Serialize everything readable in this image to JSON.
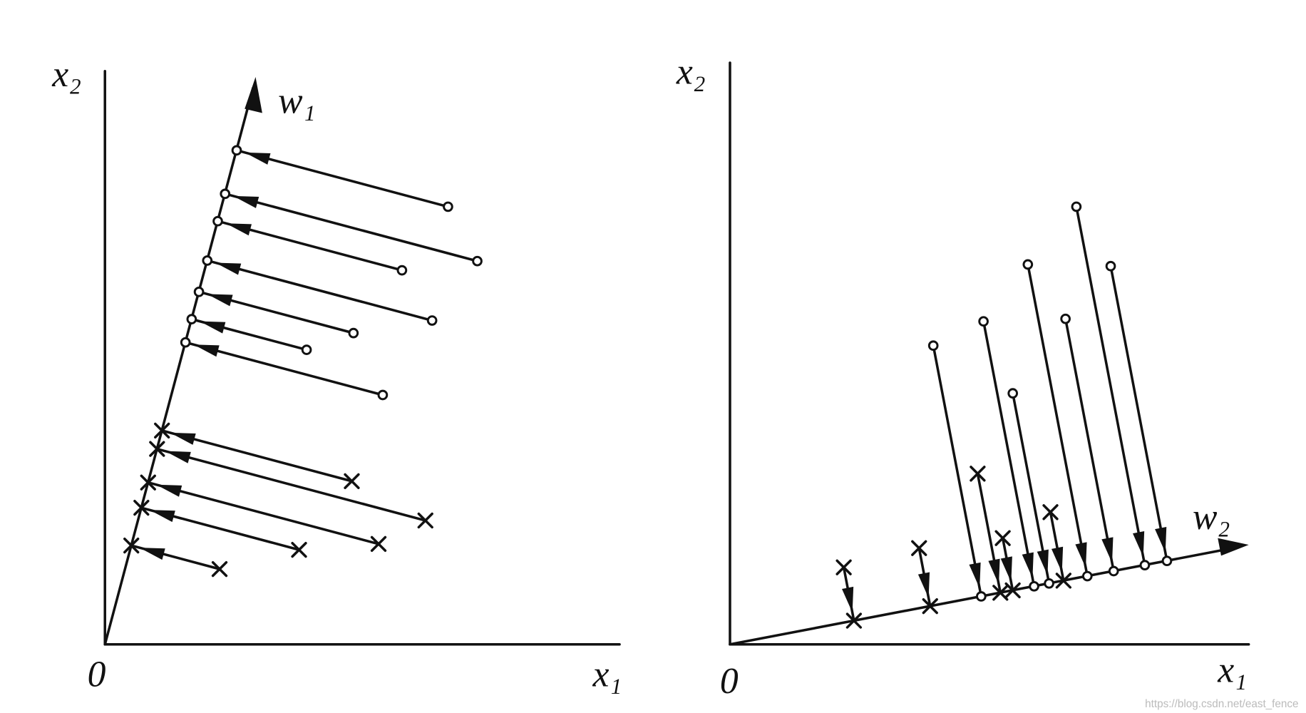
{
  "panels": [
    {
      "y_axis_label": "x₂",
      "x_axis_label": "x₁",
      "origin_label": "0",
      "direction_label": "w₁"
    },
    {
      "y_axis_label": "x₂",
      "x_axis_label": "x₁",
      "origin_label": "0",
      "direction_label": "w₂"
    }
  ],
  "watermark": "https://blog.csdn.net/east_fence"
}
